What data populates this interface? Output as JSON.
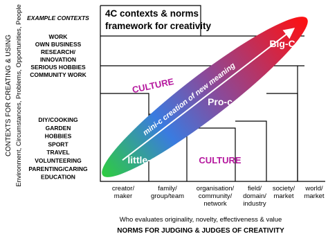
{
  "title": [
    "4C contexts & norms",
    "framework for creativity"
  ],
  "y_axis": {
    "label": "CONTEXTS FOR CREATING & USING",
    "sublabel": "Environment, Circumstances, Problems, Opportunities, People"
  },
  "examples_heading": "EXAMPLE CONTEXTS",
  "examples_upper": [
    "WORK",
    "OWN BUSINESS",
    "RESEARCH/",
    "INNOVATION",
    "SERIOUS HOBBIES",
    "COMMUNITY WORK"
  ],
  "examples_lower": [
    "DIY/COOKING",
    "GARDEN",
    "HOBBIES",
    "SPORT",
    "TRAVEL",
    "VOLUNTEERING",
    "PARENTING/CARING",
    "EDUCATION"
  ],
  "x_categories": [
    [
      "creator/",
      "maker"
    ],
    [
      "family/",
      "group/team"
    ],
    [
      "organisation/",
      "community/",
      "network"
    ],
    [
      "field/",
      "domain/",
      "industry"
    ],
    [
      "society/",
      "market"
    ],
    [
      "world/",
      "market"
    ]
  ],
  "x_axis": {
    "sublabel": "Who evaluates originality, novelty, effectiveness & value",
    "label": "NORMS FOR JUDGING & JUDGES OF CREATIVITY"
  },
  "levels": {
    "little": "little-c",
    "pro": "Pro-c",
    "big": "Big-C",
    "mini": "mini-c creation of new meaning"
  },
  "culture": [
    "CULTURE",
    "CULTURE"
  ]
}
